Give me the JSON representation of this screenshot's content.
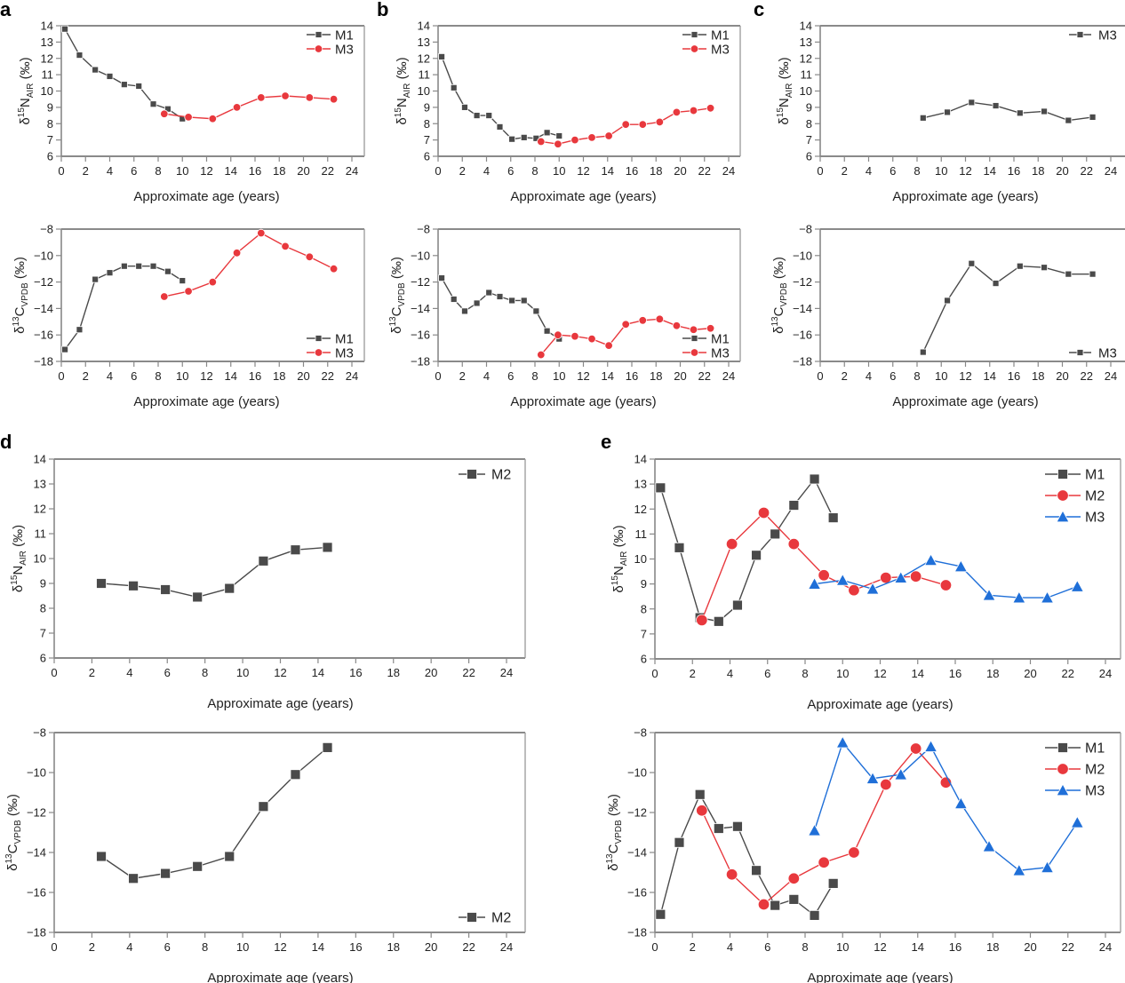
{
  "figure": {
    "panel_letters": [
      "a",
      "b",
      "c",
      "d",
      "e"
    ]
  },
  "colors": {
    "M1": "#4a4a4a",
    "M2_e": "#e8383d",
    "M3_red": "#e8383d",
    "M3_blue": "#1f6fd8",
    "single_series": "#4a4a4a",
    "axis": "#555555"
  },
  "chart_data": [
    {
      "id": "a-top",
      "panel": "a",
      "type": "line",
      "title": "",
      "xlabel": "Approximate age (years)",
      "ylabel": "δ15N_AIR (‰)",
      "ylabel_parts": {
        "delta": "δ",
        "sup": "15",
        "main": "N",
        "sub": "AIR",
        "unit": " (‰)"
      },
      "xlim": [
        0,
        24
      ],
      "ylim": [
        6,
        14
      ],
      "xticks": [
        0,
        2,
        4,
        6,
        8,
        10,
        12,
        14,
        16,
        18,
        20,
        22,
        24
      ],
      "yticks": [
        6,
        7,
        8,
        9,
        10,
        11,
        12,
        13,
        14
      ],
      "legend": "top-right",
      "series": [
        {
          "name": "M1",
          "marker": "square",
          "color": "#4a4a4a",
          "x": [
            0.3,
            1.5,
            2.8,
            4.0,
            5.2,
            6.4,
            7.6,
            8.8,
            10.0
          ],
          "y": [
            13.8,
            12.2,
            11.3,
            10.9,
            10.4,
            10.3,
            9.2,
            8.9,
            8.3
          ]
        },
        {
          "name": "M3",
          "marker": "circle",
          "color": "#e8383d",
          "x": [
            8.5,
            10.5,
            12.5,
            14.5,
            16.5,
            18.5,
            20.5,
            22.5
          ],
          "y": [
            8.6,
            8.4,
            8.3,
            9.0,
            9.6,
            9.7,
            9.6,
            9.5
          ]
        }
      ]
    },
    {
      "id": "a-bottom",
      "panel": "a",
      "type": "line",
      "title": "",
      "xlabel": "Approximate age (years)",
      "ylabel": "δ13C_VPDB (‰)",
      "ylabel_parts": {
        "delta": "δ",
        "sup": "13",
        "main": "C",
        "sub": "VPDB",
        "unit": " (‰)"
      },
      "xlim": [
        0,
        24
      ],
      "ylim": [
        -18,
        -8
      ],
      "xticks": [
        0,
        2,
        4,
        6,
        8,
        10,
        12,
        14,
        16,
        18,
        20,
        22,
        24
      ],
      "yticks": [
        -18,
        -16,
        -14,
        -12,
        -10,
        -8
      ],
      "legend": "bottom-right",
      "series": [
        {
          "name": "M1",
          "marker": "square",
          "color": "#4a4a4a",
          "x": [
            0.3,
            1.5,
            2.8,
            4.0,
            5.2,
            6.4,
            7.6,
            8.8,
            10.0
          ],
          "y": [
            -17.1,
            -15.6,
            -11.8,
            -11.3,
            -10.8,
            -10.8,
            -10.8,
            -11.2,
            -11.9
          ]
        },
        {
          "name": "M3",
          "marker": "circle",
          "color": "#e8383d",
          "x": [
            8.5,
            10.5,
            12.5,
            14.5,
            16.5,
            18.5,
            20.5,
            22.5
          ],
          "y": [
            -13.1,
            -12.7,
            -12.0,
            -9.8,
            -8.3,
            -9.3,
            -10.1,
            -11.0
          ]
        }
      ]
    },
    {
      "id": "b-top",
      "panel": "b",
      "type": "line",
      "title": "",
      "xlabel": "Approximate age (years)",
      "ylabel": "δ15N_AIR (‰)",
      "ylabel_parts": {
        "delta": "δ",
        "sup": "15",
        "main": "N",
        "sub": "AIR",
        "unit": " (‰)"
      },
      "xlim": [
        0,
        24
      ],
      "ylim": [
        6,
        14
      ],
      "xticks": [
        0,
        2,
        4,
        6,
        8,
        10,
        12,
        14,
        16,
        18,
        20,
        22,
        24
      ],
      "yticks": [
        6,
        7,
        8,
        9,
        10,
        11,
        12,
        13,
        14
      ],
      "legend": "top-right",
      "series": [
        {
          "name": "M1",
          "marker": "square",
          "color": "#4a4a4a",
          "x": [
            0.3,
            1.3,
            2.2,
            3.2,
            4.2,
            5.1,
            6.1,
            7.1,
            8.1,
            9.0,
            10.0
          ],
          "y": [
            12.1,
            10.2,
            9.0,
            8.5,
            8.5,
            7.8,
            7.05,
            7.15,
            7.1,
            7.45,
            7.25
          ]
        },
        {
          "name": "M3",
          "marker": "circle",
          "color": "#e8383d",
          "x": [
            8.5,
            9.9,
            11.3,
            12.7,
            14.1,
            15.5,
            16.9,
            18.3,
            19.7,
            21.1,
            22.5
          ],
          "y": [
            6.9,
            6.75,
            7.0,
            7.15,
            7.25,
            7.95,
            7.95,
            8.1,
            8.7,
            8.8,
            8.95
          ]
        }
      ]
    },
    {
      "id": "b-bottom",
      "panel": "b",
      "type": "line",
      "title": "",
      "xlabel": "Approximate age (years)",
      "ylabel": "δ13C_VPDB (‰)",
      "ylabel_parts": {
        "delta": "δ",
        "sup": "13",
        "main": "C",
        "sub": "VPDB",
        "unit": " (‰)"
      },
      "xlim": [
        0,
        24
      ],
      "ylim": [
        -18,
        -8
      ],
      "xticks": [
        0,
        2,
        4,
        6,
        8,
        10,
        12,
        14,
        16,
        18,
        20,
        22,
        24
      ],
      "yticks": [
        -18,
        -16,
        -14,
        -12,
        -10,
        -8
      ],
      "legend": "bottom-right",
      "series": [
        {
          "name": "M1",
          "marker": "square",
          "color": "#4a4a4a",
          "x": [
            0.3,
            1.3,
            2.2,
            3.2,
            4.2,
            5.1,
            6.1,
            7.1,
            8.1,
            9.0,
            10.0
          ],
          "y": [
            -11.7,
            -13.3,
            -14.2,
            -13.6,
            -12.8,
            -13.1,
            -13.4,
            -13.4,
            -14.2,
            -15.7,
            -16.3
          ]
        },
        {
          "name": "M3",
          "marker": "circle",
          "color": "#e8383d",
          "x": [
            8.5,
            9.9,
            11.3,
            12.7,
            14.1,
            15.5,
            16.9,
            18.3,
            19.7,
            21.1,
            22.5
          ],
          "y": [
            -17.5,
            -16.0,
            -16.1,
            -16.3,
            -16.8,
            -15.2,
            -14.9,
            -14.8,
            -15.3,
            -15.6,
            -15.5
          ]
        }
      ]
    },
    {
      "id": "c-top",
      "panel": "c",
      "type": "line",
      "title": "",
      "xlabel": "Approximate age (years)",
      "ylabel": "δ15N_AIR (‰)",
      "ylabel_parts": {
        "delta": "δ",
        "sup": "15",
        "main": "N",
        "sub": "AIR",
        "unit": " (‰)"
      },
      "xlim": [
        0,
        24
      ],
      "ylim": [
        6,
        14
      ],
      "xticks": [
        0,
        2,
        4,
        6,
        8,
        10,
        12,
        14,
        16,
        18,
        20,
        22,
        24
      ],
      "yticks": [
        6,
        7,
        8,
        9,
        10,
        11,
        12,
        13,
        14
      ],
      "legend": "top-right",
      "series": [
        {
          "name": "M3",
          "marker": "square",
          "color": "#4a4a4a",
          "x": [
            8.5,
            10.5,
            12.5,
            14.5,
            16.5,
            18.5,
            20.5,
            22.5
          ],
          "y": [
            8.35,
            8.7,
            9.3,
            9.1,
            8.65,
            8.75,
            8.2,
            8.4
          ]
        }
      ]
    },
    {
      "id": "c-bottom",
      "panel": "c",
      "type": "line",
      "title": "",
      "xlabel": "Approximate age (years)",
      "ylabel": "δ13C_VPDB (‰)",
      "ylabel_parts": {
        "delta": "δ",
        "sup": "13",
        "main": "C",
        "sub": "VPDB",
        "unit": " (‰)"
      },
      "xlim": [
        0,
        24
      ],
      "ylim": [
        -18,
        -8
      ],
      "xticks": [
        0,
        2,
        4,
        6,
        8,
        10,
        12,
        14,
        16,
        18,
        20,
        22,
        24
      ],
      "yticks": [
        -18,
        -16,
        -14,
        -12,
        -10,
        -8
      ],
      "legend": "bottom-right",
      "series": [
        {
          "name": "M3",
          "marker": "square",
          "color": "#4a4a4a",
          "x": [
            8.5,
            10.5,
            12.5,
            14.5,
            16.5,
            18.5,
            20.5,
            22.5
          ],
          "y": [
            -17.3,
            -13.4,
            -10.6,
            -12.1,
            -10.8,
            -10.9,
            -11.4,
            -11.4
          ]
        }
      ]
    },
    {
      "id": "d-top",
      "panel": "d",
      "type": "line",
      "title": "",
      "xlabel": "Approximate age (years)",
      "ylabel": "δ15N_AIR (‰)",
      "ylabel_parts": {
        "delta": "δ",
        "sup": "15",
        "main": "N",
        "sub": "AIR",
        "unit": " (‰)"
      },
      "xlim": [
        0,
        24
      ],
      "ylim": [
        6,
        14
      ],
      "xticks": [
        0,
        2,
        4,
        6,
        8,
        10,
        12,
        14,
        16,
        18,
        20,
        22,
        24
      ],
      "yticks": [
        6,
        7,
        8,
        9,
        10,
        11,
        12,
        13,
        14
      ],
      "legend": "top-right",
      "series": [
        {
          "name": "M2",
          "marker": "square",
          "color": "#4a4a4a",
          "x": [
            2.5,
            4.2,
            5.9,
            7.6,
            9.3,
            11.1,
            12.8,
            14.5
          ],
          "y": [
            9.0,
            8.9,
            8.75,
            8.45,
            8.8,
            9.9,
            10.35,
            10.45
          ]
        }
      ]
    },
    {
      "id": "d-bottom",
      "panel": "d",
      "type": "line",
      "title": "",
      "xlabel": "Approximate age (years)",
      "ylabel": "δ13C_VPDB (‰)",
      "ylabel_parts": {
        "delta": "δ",
        "sup": "13",
        "main": "C",
        "sub": "VPDB",
        "unit": " (‰)"
      },
      "xlim": [
        0,
        24
      ],
      "ylim": [
        -18,
        -8
      ],
      "xticks": [
        0,
        2,
        4,
        6,
        8,
        10,
        12,
        14,
        16,
        18,
        20,
        22,
        24
      ],
      "yticks": [
        -18,
        -16,
        -14,
        -12,
        -10,
        -8
      ],
      "legend": "bottom-right",
      "series": [
        {
          "name": "M2",
          "marker": "square",
          "color": "#4a4a4a",
          "x": [
            2.5,
            4.2,
            5.9,
            7.6,
            9.3,
            11.1,
            12.8,
            14.5
          ],
          "y": [
            -14.2,
            -15.3,
            -15.05,
            -14.7,
            -14.2,
            -11.7,
            -10.1,
            -8.75
          ]
        }
      ]
    },
    {
      "id": "e-top",
      "panel": "e",
      "type": "line",
      "title": "",
      "xlabel": "Approximate age (years)",
      "ylabel": "δ15N_AIR (‰)",
      "ylabel_parts": {
        "delta": "δ",
        "sup": "15",
        "main": "N",
        "sub": "AIR",
        "unit": " (‰)"
      },
      "xlim": [
        0,
        24
      ],
      "ylim": [
        6,
        14
      ],
      "xticks": [
        0,
        2,
        4,
        6,
        8,
        10,
        12,
        14,
        16,
        18,
        20,
        22,
        24
      ],
      "yticks": [
        6,
        7,
        8,
        9,
        10,
        11,
        12,
        13,
        14
      ],
      "legend": "top-right",
      "series": [
        {
          "name": "M1",
          "marker": "square",
          "color": "#4a4a4a",
          "x": [
            0.3,
            1.3,
            2.4,
            3.4,
            4.4,
            5.4,
            6.4,
            7.4,
            8.5,
            9.5
          ],
          "y": [
            12.85,
            10.45,
            7.65,
            7.5,
            8.15,
            10.15,
            11.0,
            12.15,
            13.2,
            11.65
          ]
        },
        {
          "name": "M2",
          "marker": "circle",
          "color": "#e8383d",
          "x": [
            2.5,
            4.1,
            5.8,
            7.4,
            9.0,
            10.6,
            12.3,
            13.9,
            15.5
          ],
          "y": [
            7.55,
            10.6,
            11.85,
            10.6,
            9.35,
            8.75,
            9.25,
            9.3,
            8.95
          ]
        },
        {
          "name": "M3",
          "marker": "triangle",
          "color": "#1f6fd8",
          "x": [
            8.5,
            10.0,
            11.6,
            13.1,
            14.7,
            16.3,
            17.8,
            19.4,
            20.9,
            22.5
          ],
          "y": [
            9.0,
            9.15,
            8.8,
            9.25,
            9.95,
            9.7,
            8.55,
            8.45,
            8.45,
            8.9
          ]
        }
      ]
    },
    {
      "id": "e-bottom",
      "panel": "e",
      "type": "line",
      "title": "",
      "xlabel": "Approximate age (years)",
      "ylabel": "δ13C_VPDB (‰)",
      "ylabel_parts": {
        "delta": "δ",
        "sup": "13",
        "main": "C",
        "sub": "VPDB",
        "unit": " (‰)"
      },
      "xlim": [
        0,
        24
      ],
      "ylim": [
        -18,
        -8
      ],
      "xticks": [
        0,
        2,
        4,
        6,
        8,
        10,
        12,
        14,
        16,
        18,
        20,
        22,
        24
      ],
      "yticks": [
        -18,
        -16,
        -14,
        -12,
        -10,
        -8
      ],
      "legend": "top-right",
      "series": [
        {
          "name": "M1",
          "marker": "square",
          "color": "#4a4a4a",
          "x": [
            0.3,
            1.3,
            2.4,
            3.4,
            4.4,
            5.4,
            6.4,
            7.4,
            8.5,
            9.5
          ],
          "y": [
            -17.1,
            -13.5,
            -11.1,
            -12.8,
            -12.7,
            -14.9,
            -16.65,
            -16.35,
            -17.15,
            -15.55
          ]
        },
        {
          "name": "M2",
          "marker": "circle",
          "color": "#e8383d",
          "x": [
            2.5,
            4.1,
            5.8,
            7.4,
            9.0,
            10.6,
            12.3,
            13.9,
            15.5
          ],
          "y": [
            -11.9,
            -15.1,
            -16.6,
            -15.3,
            -14.5,
            -14.0,
            -10.6,
            -8.8,
            -10.5
          ]
        },
        {
          "name": "M3",
          "marker": "triangle",
          "color": "#1f6fd8",
          "x": [
            8.5,
            10.0,
            11.6,
            13.1,
            14.7,
            16.3,
            17.8,
            19.4,
            20.9,
            22.5
          ],
          "y": [
            -12.9,
            -8.5,
            -10.3,
            -10.1,
            -8.7,
            -11.55,
            -13.7,
            -14.9,
            -14.75,
            -12.5
          ]
        }
      ]
    }
  ]
}
